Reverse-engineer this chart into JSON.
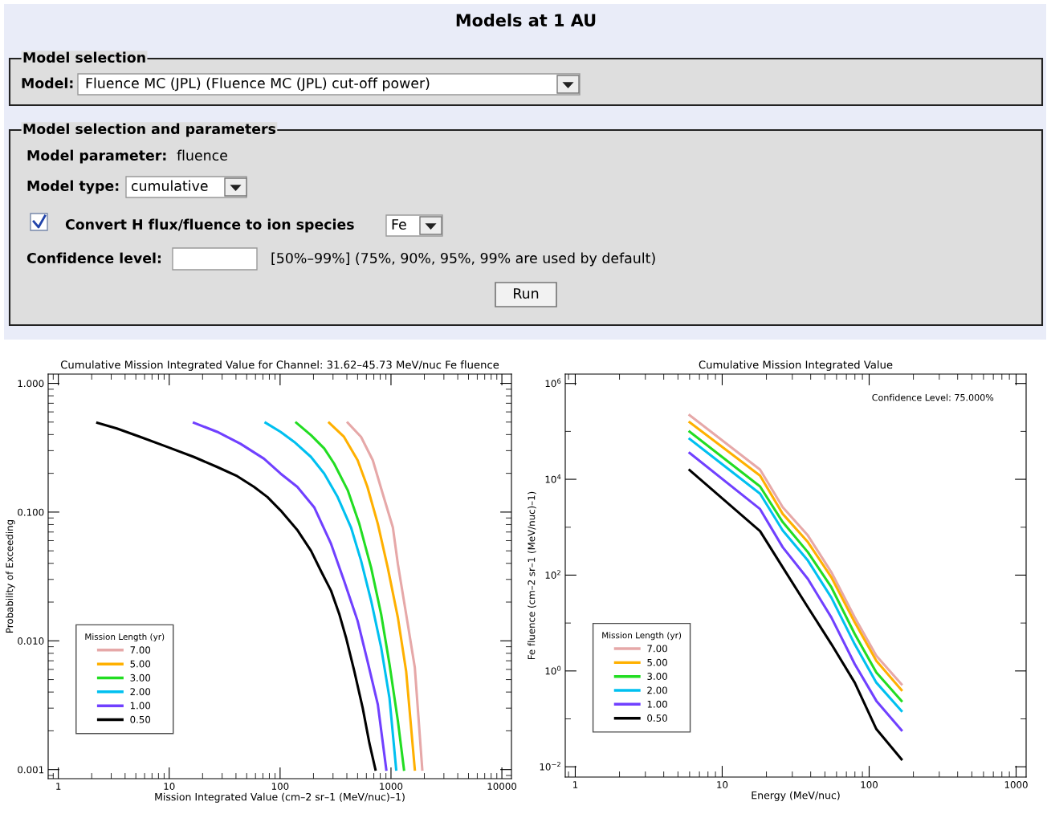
{
  "chart_data": [
    {
      "type": "other",
      "title": "Models at 1 AU",
      "annotations": [
        "Model selection",
        "Model:",
        "Fluence MC (JPL) (Fluence MC (JPL) cut-off power)",
        "Model selection and parameters",
        "Model parameter:",
        "fluence",
        "Model type:",
        "cumulative",
        "Convert H flux/fluence to ion species",
        "Fe",
        "Confidence level:",
        "[50%–99%] (75%, 90%, 95%, 99% are used by default)",
        "Run"
      ]
    },
    {
      "type": "line",
      "title": "Cumulative Mission Integrated Value for Channel: 31.62–45.73 MeV/nuc Fe fluence",
      "xlabel": "Mission Integrated Value (cm–2 sr–1 (MeV/nuc)–1)",
      "ylabel": "Probability of Exceeding",
      "log": "xy",
      "legend": "bottom left",
      "legend_title": "Mission Length (yr)",
      "grid": false,
      "xlim": [
        0.81,
        12200
      ],
      "xticks": [
        1,
        10,
        100,
        1000,
        10000
      ],
      "ylim": [
        0.00085,
        1.18
      ],
      "yticks": [
        {
          "value": 0.001,
          "label": "0.001"
        },
        {
          "value": 0.01,
          "label": "0.010"
        },
        {
          "value": 0.1,
          "label": "0.100"
        },
        {
          "value": 1,
          "label": "1.000"
        }
      ],
      "series": [
        {
          "name": "7.00",
          "color": "#e6a8a8",
          "x": [
            407,
            537,
            685,
            842,
            1040,
            1153,
            1370,
            1640,
            1915
          ],
          "values": [
            0.494,
            0.384,
            0.253,
            0.139,
            0.076,
            0.0396,
            0.0161,
            0.0062,
            0.001
          ]
        },
        {
          "name": "5.00",
          "color": "#ffb000",
          "x": [
            277,
            377,
            500,
            613,
            761,
            935,
            1153,
            1370,
            1640
          ],
          "values": [
            0.494,
            0.384,
            0.253,
            0.157,
            0.081,
            0.037,
            0.0152,
            0.0058,
            0.001
          ]
        },
        {
          "name": "3.00",
          "color": "#22dd22",
          "x": [
            140,
            190,
            250,
            307,
            407,
            518,
            662,
            815,
            969,
            1153,
            1310
          ],
          "values": [
            0.494,
            0.396,
            0.312,
            0.238,
            0.148,
            0.081,
            0.037,
            0.0161,
            0.0066,
            0.0024,
            0.001
          ]
        },
        {
          "name": "2.00",
          "color": "#00c0f0",
          "x": [
            74,
            101,
            134,
            190,
            250,
            330,
            436,
            537,
            662,
            815,
            969,
            1114
          ],
          "values": [
            0.494,
            0.42,
            0.351,
            0.268,
            0.199,
            0.131,
            0.076,
            0.042,
            0.0205,
            0.0089,
            0.0036,
            0.001
          ]
        },
        {
          "name": "1.00",
          "color": "#7040ff",
          "x": [
            16.7,
            27.1,
            44,
            71.5,
            101,
            143,
            203,
            288,
            377,
            500,
            613,
            761,
            907
          ],
          "values": [
            0.494,
            0.42,
            0.339,
            0.26,
            0.199,
            0.157,
            0.109,
            0.0567,
            0.0294,
            0.0143,
            0.007,
            0.0032,
            0.001
          ]
        },
        {
          "name": "0.50",
          "color": "#000000",
          "x": [
            2.25,
            3.37,
            5.48,
            9.56,
            16.7,
            27.1,
            41.1,
            58.2,
            76.8,
            101,
            144,
            190,
            233,
            288,
            342,
            393,
            467,
            556,
            639,
            724
          ],
          "values": [
            0.494,
            0.446,
            0.384,
            0.321,
            0.268,
            0.224,
            0.19,
            0.157,
            0.131,
            0.103,
            0.072,
            0.05,
            0.035,
            0.0245,
            0.0161,
            0.0106,
            0.0058,
            0.003,
            0.0016,
            0.001
          ]
        }
      ]
    },
    {
      "type": "line",
      "title": "Cumulative Mission Integrated Value",
      "xlabel": "Energy (MeV/nuc)",
      "ylabel": "Fe fluence (cm–2 sr–1 (MeV/nuc)–1)",
      "log": "xy",
      "legend": "bottom left",
      "legend_title": "Mission Length (yr)",
      "grid": false,
      "annotations": [
        "Confidence Level: 75.000%"
      ],
      "xlim": [
        0.855,
        1170
      ],
      "xticks": [
        1,
        10,
        100,
        1000
      ],
      "ylim": [
        0.0061,
        1570000
      ],
      "yticks": [
        {
          "value": 0.01,
          "label": "10$^{−2}$"
        },
        {
          "value": 1,
          "label": "10$^{0}$"
        },
        {
          "value": 100,
          "label": "10$^{2}$"
        },
        {
          "value": 10000,
          "label": "10$^{4}$"
        },
        {
          "value": 1000000,
          "label": "10$^{6}$"
        }
      ],
      "x": [
        6.0,
        18.1,
        25.8,
        38.3,
        55.3,
        79.8,
        112,
        166
      ],
      "series": [
        {
          "name": "7.00",
          "color": "#e6a8a8",
          "values": [
            218000,
            15900,
            2630,
            671,
            115,
            13.1,
            2.07,
            0.53
          ]
        },
        {
          "name": "5.00",
          "color": "#ffb000",
          "values": [
            155000,
            11900,
            1900,
            488,
            90,
            10.3,
            1.63,
            0.4
          ]
        },
        {
          "name": "3.00",
          "color": "#22dd22",
          "values": [
            99000,
            7100,
            1280,
            301,
            56,
            5.9,
            0.93,
            0.237
          ]
        },
        {
          "name": "2.00",
          "color": "#00c0f0",
          "values": [
            69500,
            5000,
            855,
            201,
            34,
            3.6,
            0.57,
            0.147
          ]
        },
        {
          "name": "1.00",
          "color": "#7040ff",
          "values": [
            35400,
            2390,
            383,
            83,
            13.1,
            1.39,
            0.237,
            0.058
          ]
        },
        {
          "name": "0.50",
          "color": "#000000",
          "values": [
            15600,
            830,
            146,
            21.3,
            3.64,
            0.57,
            0.061,
            0.0143
          ]
        }
      ]
    }
  ]
}
